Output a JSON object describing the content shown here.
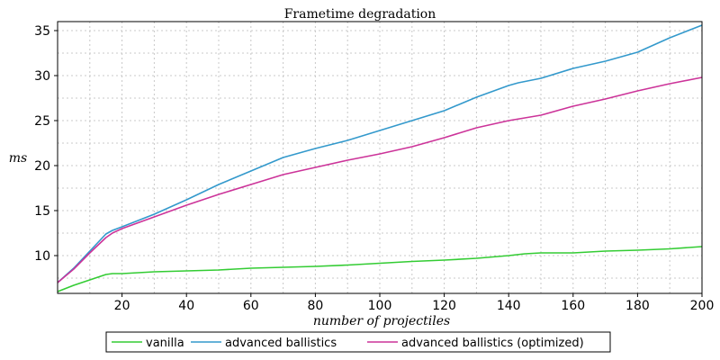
{
  "chart_data": {
    "type": "line",
    "title": "Frametime degradation",
    "xlabel": "number of projectiles",
    "ylabel": "ms",
    "xlim": [
      0,
      200
    ],
    "ylim": [
      5.8,
      36
    ],
    "xticks": [
      20,
      40,
      60,
      80,
      100,
      120,
      140,
      160,
      180,
      200
    ],
    "yticks": [
      10,
      15,
      20,
      25,
      30,
      35
    ],
    "grid": true,
    "legend_position": "bottom",
    "series": [
      {
        "name": "vanilla",
        "color": "#33cc33",
        "x": [
          0,
          5,
          10,
          15,
          17,
          20,
          30,
          40,
          50,
          60,
          70,
          80,
          90,
          100,
          110,
          120,
          130,
          140,
          145,
          150,
          160,
          170,
          180,
          190,
          200
        ],
        "y": [
          6.0,
          6.7,
          7.3,
          7.9,
          8.0,
          8.0,
          8.2,
          8.3,
          8.4,
          8.6,
          8.7,
          8.8,
          8.95,
          9.15,
          9.35,
          9.5,
          9.7,
          10.0,
          10.2,
          10.3,
          10.3,
          10.5,
          10.6,
          10.75,
          11.0
        ]
      },
      {
        "name": "advanced ballistics",
        "color": "#3399cc",
        "x": [
          0,
          5,
          10,
          15,
          17,
          20,
          30,
          40,
          50,
          60,
          70,
          80,
          90,
          100,
          110,
          120,
          130,
          140,
          143,
          150,
          160,
          170,
          180,
          190,
          195,
          200
        ],
        "y": [
          7.0,
          8.6,
          10.5,
          12.4,
          12.8,
          13.2,
          14.6,
          16.2,
          17.9,
          19.4,
          20.9,
          21.9,
          22.8,
          23.9,
          25.0,
          26.1,
          27.6,
          28.9,
          29.2,
          29.7,
          30.8,
          31.6,
          32.6,
          34.2,
          34.9,
          35.6
        ]
      },
      {
        "name": "advanced ballistics (optimized)",
        "color": "#cc3399",
        "x": [
          0,
          5,
          10,
          15,
          17,
          20,
          30,
          40,
          50,
          60,
          70,
          80,
          90,
          100,
          110,
          120,
          130,
          140,
          150,
          160,
          170,
          180,
          190,
          200
        ],
        "y": [
          7.0,
          8.5,
          10.3,
          12.0,
          12.5,
          13.0,
          14.3,
          15.6,
          16.8,
          17.9,
          19.0,
          19.8,
          20.6,
          21.3,
          22.1,
          23.1,
          24.2,
          25.0,
          25.6,
          26.6,
          27.4,
          28.3,
          29.1,
          29.8
        ]
      }
    ]
  }
}
